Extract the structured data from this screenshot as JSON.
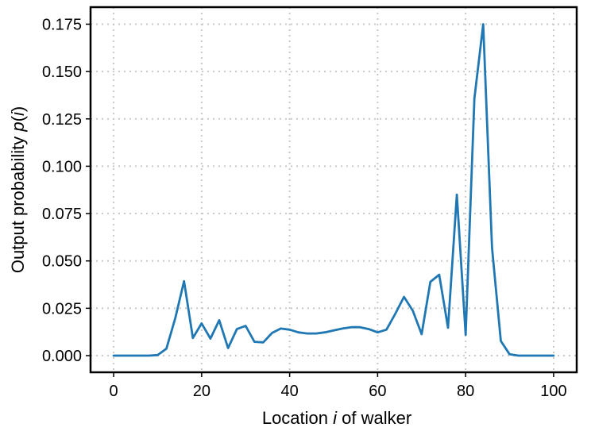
{
  "chart_data": {
    "type": "line",
    "xlabel_parts": [
      "Location ",
      "i",
      " of walker"
    ],
    "ylabel_parts": [
      "Output probability ",
      "p",
      "(",
      "i",
      ")"
    ],
    "xlim": [
      -5.25,
      105.25
    ],
    "ylim": [
      -0.0088,
      0.184
    ],
    "xticks": [
      0,
      20,
      40,
      60,
      80,
      100
    ],
    "yticks": [
      0.0,
      0.025,
      0.05,
      0.075,
      0.1,
      0.125,
      0.15,
      0.175
    ],
    "ytick_labels": [
      "0.000",
      "0.025",
      "0.050",
      "0.075",
      "0.100",
      "0.125",
      "0.150",
      "0.175"
    ],
    "grid": true,
    "series": [
      {
        "color": "#1f77b4",
        "x": [
          0,
          2,
          4,
          6,
          8,
          10,
          12,
          14,
          16,
          18,
          20,
          22,
          24,
          26,
          28,
          30,
          32,
          34,
          36,
          38,
          40,
          42,
          44,
          46,
          48,
          50,
          52,
          54,
          56,
          58,
          60,
          62,
          64,
          66,
          68,
          70,
          72,
          74,
          76,
          78,
          80,
          82,
          84,
          86,
          88,
          90,
          92,
          94,
          96,
          98,
          100
        ],
        "y": [
          0.0,
          0.0,
          0.0,
          0.0,
          0.0,
          0.0003,
          0.0037,
          0.0197,
          0.0393,
          0.0093,
          0.017,
          0.009,
          0.0187,
          0.004,
          0.014,
          0.0157,
          0.0073,
          0.007,
          0.012,
          0.0143,
          0.0137,
          0.0123,
          0.0117,
          0.0117,
          0.0123,
          0.0133,
          0.0143,
          0.015,
          0.015,
          0.014,
          0.0123,
          0.0137,
          0.022,
          0.031,
          0.0237,
          0.0113,
          0.039,
          0.0427,
          0.0147,
          0.085,
          0.011,
          0.1357,
          0.175,
          0.057,
          0.0077,
          0.0007,
          0.0,
          0.0,
          0.0,
          0.0,
          0.0
        ]
      }
    ]
  }
}
